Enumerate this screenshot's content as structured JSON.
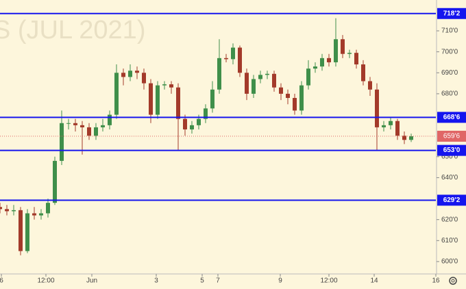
{
  "chart_data": {
    "type": "candlestick",
    "watermark": "S (JUL 2021)",
    "x": [
      0,
      2,
      4,
      6,
      8,
      10,
      12,
      14,
      16,
      18,
      20,
      22,
      24,
      26,
      28,
      30,
      32,
      34,
      36,
      38,
      40,
      42,
      44,
      46,
      48,
      50,
      52,
      54,
      56,
      58,
      60,
      62,
      64,
      66,
      68,
      70,
      72,
      74,
      76,
      78,
      80,
      82,
      84,
      86,
      88,
      90,
      92,
      94,
      96,
      98,
      100,
      102,
      104,
      106,
      108,
      110,
      112,
      114,
      116,
      118,
      120
    ],
    "open": [
      626,
      625,
      624,
      624.5,
      605,
      623,
      622,
      623,
      628,
      648,
      666,
      666,
      665,
      664,
      660,
      664,
      665,
      670,
      690,
      688,
      691,
      690,
      685,
      670,
      684,
      684.5,
      683,
      668,
      663,
      665,
      668,
      673,
      682,
      697,
      696.5,
      702,
      690,
      680,
      687,
      689,
      689.5,
      683,
      680,
      678,
      672,
      684,
      692,
      693,
      697,
      695,
      706,
      699,
      699.5,
      694,
      686,
      682,
      664,
      665,
      667,
      660,
      658
    ],
    "high": [
      628,
      627,
      627,
      626,
      625,
      626,
      625,
      630,
      650,
      672,
      668,
      668,
      667,
      666,
      666,
      668,
      672,
      694,
      692,
      694,
      693,
      692,
      687,
      686,
      686,
      686,
      685,
      670,
      667,
      670,
      675,
      686,
      706,
      699,
      704,
      703,
      692,
      689,
      691,
      691,
      691,
      685,
      682,
      680,
      686,
      696,
      695,
      699,
      699,
      716,
      708,
      701,
      701,
      696,
      688,
      685,
      667,
      669,
      668,
      662,
      661
    ],
    "low": [
      623,
      622,
      622,
      603,
      604,
      620,
      620,
      621,
      627,
      646,
      663,
      662,
      651,
      658,
      658,
      662,
      663,
      668,
      684,
      686,
      687,
      682,
      666,
      668,
      682,
      680,
      653,
      660,
      661,
      663,
      666,
      671,
      680,
      695,
      694,
      688,
      677,
      678,
      685,
      687,
      681,
      677,
      675,
      670,
      670,
      682,
      690,
      691,
      693,
      693,
      697,
      697,
      692,
      684,
      679,
      653,
      662,
      663,
      658,
      656,
      657
    ],
    "close": [
      625,
      624,
      624.5,
      605,
      623,
      622,
      623,
      628,
      648,
      666,
      666,
      665,
      664,
      660,
      664,
      665,
      670,
      690,
      688,
      691,
      690,
      685,
      670,
      684,
      684.5,
      683,
      668,
      663,
      665,
      668,
      673,
      682,
      697,
      696.5,
      702,
      690,
      680,
      687,
      689,
      689.5,
      683,
      680,
      678,
      672,
      684,
      692,
      693,
      697,
      695,
      706,
      699,
      699.5,
      694,
      686,
      682,
      664,
      665,
      667,
      660,
      658,
      659.75
    ],
    "up_color": "#3f8f4a",
    "down_color": "#a33a2a",
    "xlim": [
      0,
      127.2
    ],
    "xticks": [
      {
        "value": 0.4,
        "label": "6"
      },
      {
        "value": 13.4,
        "label": "12:00"
      },
      {
        "value": 26.8,
        "label": "Jun"
      },
      {
        "value": 45.6,
        "label": "3"
      },
      {
        "value": 59,
        "label": "5"
      },
      {
        "value": 63.6,
        "label": "7"
      },
      {
        "value": 81.8,
        "label": "9"
      },
      {
        "value": 96,
        "label": "12:00"
      },
      {
        "value": 109.2,
        "label": "14"
      },
      {
        "value": 127.2,
        "label": "16"
      }
    ],
    "ylim": [
      594.1,
      724.7
    ],
    "yticks": [
      {
        "value": 600,
        "label": "600'0"
      },
      {
        "value": 610,
        "label": "610'0"
      },
      {
        "value": 620,
        "label": "620'0"
      },
      {
        "value": 640,
        "label": "640'0"
      },
      {
        "value": 650,
        "label": "650'0"
      },
      {
        "value": 680,
        "label": "680'0"
      },
      {
        "value": 690,
        "label": "690'0"
      },
      {
        "value": 700,
        "label": "700'0"
      },
      {
        "value": 710,
        "label": "710'0"
      }
    ],
    "levels": [
      {
        "value": 718.25,
        "label": "718'2"
      },
      {
        "value": 668.75,
        "label": "668'6"
      },
      {
        "value": 653,
        "label": "653'0"
      },
      {
        "value": 629.25,
        "label": "629'2"
      }
    ],
    "level_color": "#1515ee",
    "last_price": {
      "value": 659.75,
      "label": "659'6"
    },
    "last_price_color": "#e06666"
  }
}
